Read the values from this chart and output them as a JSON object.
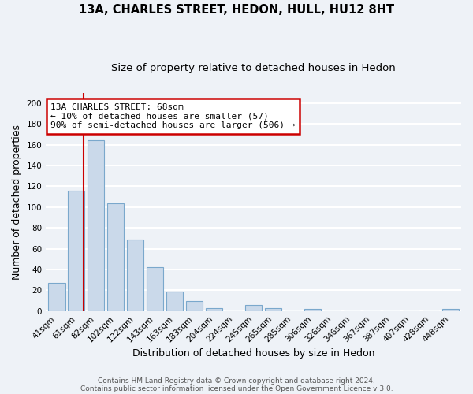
{
  "title": "13A, CHARLES STREET, HEDON, HULL, HU12 8HT",
  "subtitle": "Size of property relative to detached houses in Hedon",
  "xlabel": "Distribution of detached houses by size in Hedon",
  "ylabel": "Number of detached properties",
  "bar_labels": [
    "41sqm",
    "61sqm",
    "82sqm",
    "102sqm",
    "122sqm",
    "143sqm",
    "163sqm",
    "183sqm",
    "204sqm",
    "224sqm",
    "245sqm",
    "265sqm",
    "285sqm",
    "306sqm",
    "326sqm",
    "346sqm",
    "367sqm",
    "387sqm",
    "407sqm",
    "428sqm",
    "448sqm"
  ],
  "bar_values": [
    27,
    116,
    164,
    104,
    69,
    42,
    19,
    10,
    3,
    0,
    6,
    3,
    0,
    2,
    0,
    0,
    0,
    0,
    0,
    0,
    2
  ],
  "bar_color": "#cad9ea",
  "bar_edge_color": "#7aa8cc",
  "ylim": [
    0,
    210
  ],
  "yticks": [
    0,
    20,
    40,
    60,
    80,
    100,
    120,
    140,
    160,
    180,
    200
  ],
  "property_line_x": 1.35,
  "annotation_line1": "13A CHARLES STREET: 68sqm",
  "annotation_line2": "← 10% of detached houses are smaller (57)",
  "annotation_line3": "90% of semi-detached houses are larger (506) →",
  "annotation_box_color": "#ffffff",
  "annotation_box_edge": "#cc0000",
  "vline_color": "#cc0000",
  "footer_line1": "Contains HM Land Registry data © Crown copyright and database right 2024.",
  "footer_line2": "Contains public sector information licensed under the Open Government Licence v 3.0.",
  "background_color": "#eef2f7",
  "plot_background": "#eef2f7",
  "grid_color": "#ffffff",
  "title_fontsize": 10.5,
  "subtitle_fontsize": 9.5,
  "axis_label_fontsize": 9,
  "tick_fontsize": 7.5,
  "annotation_fontsize": 8,
  "footer_fontsize": 6.5
}
